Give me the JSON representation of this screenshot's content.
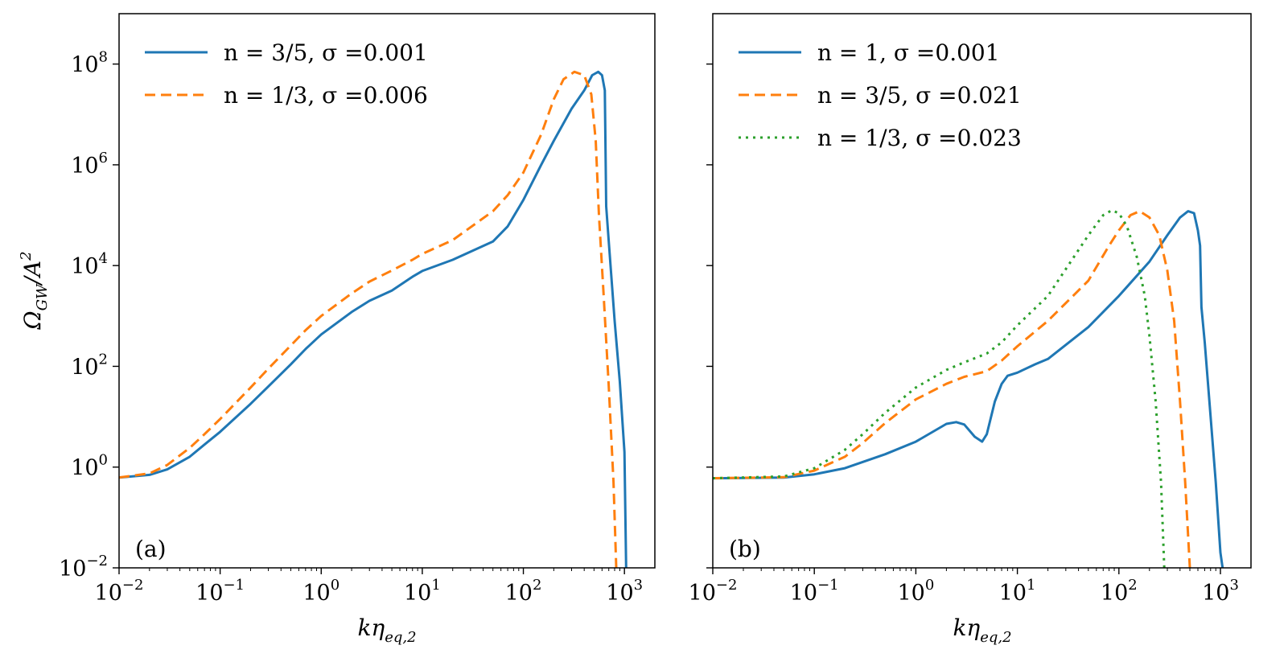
{
  "figure": {
    "ylabel": "Ω",
    "ylabel_sub": "GW",
    "ylabel_tail": "/A",
    "ylabel_sup": "2",
    "xlabel": "kη",
    "xlabel_sub": "eq,2"
  },
  "chart_data": [
    {
      "type": "line",
      "panel_tag": "(a)",
      "xscale": "log",
      "yscale": "log",
      "xlim": [
        0.01,
        2000
      ],
      "ylim": [
        0.01,
        1000000000.0
      ],
      "xtick_exps": [
        -2,
        -1,
        0,
        1,
        2,
        3
      ],
      "ytick_exps": [
        -2,
        0,
        2,
        4,
        6,
        8
      ],
      "ytick_labels_visible": true,
      "legend_position": "upper-left",
      "series": [
        {
          "name": "n = 3/5, σ =0.001",
          "color": "#1f77b4",
          "style": "solid",
          "points": [
            [
              0.01,
              0.62
            ],
            [
              0.02,
              0.7
            ],
            [
              0.03,
              0.9
            ],
            [
              0.05,
              1.6
            ],
            [
              0.07,
              2.8
            ],
            [
              0.1,
              5
            ],
            [
              0.2,
              18
            ],
            [
              0.3,
              40
            ],
            [
              0.5,
              110
            ],
            [
              0.7,
              220
            ],
            [
              1,
              430
            ],
            [
              2,
              1200
            ],
            [
              3,
              2000
            ],
            [
              5,
              3200
            ],
            [
              8,
              6000
            ],
            [
              10,
              7800
            ],
            [
              20,
              13000
            ],
            [
              50,
              30000
            ],
            [
              70,
              60000
            ],
            [
              100,
              200000
            ],
            [
              150,
              1000000.0
            ],
            [
              200,
              3000000.0
            ],
            [
              300,
              13000000.0
            ],
            [
              400,
              30000000.0
            ],
            [
              480,
              60000000.0
            ],
            [
              550,
              70000000.0
            ],
            [
              600,
              60000000.0
            ],
            [
              640,
              30000000.0
            ],
            [
              660,
              150000.0
            ],
            [
              700,
              30000.0
            ],
            [
              800,
              800
            ],
            [
              900,
              50
            ],
            [
              1000,
              2
            ],
            [
              1040,
              0.01
            ]
          ]
        },
        {
          "name": "n = 1/3, σ =0.006",
          "color": "#ff7f0e",
          "style": "dashed",
          "points": [
            [
              0.01,
              0.62
            ],
            [
              0.02,
              0.75
            ],
            [
              0.03,
              1.1
            ],
            [
              0.05,
              2.4
            ],
            [
              0.07,
              4.5
            ],
            [
              0.1,
              9
            ],
            [
              0.2,
              38
            ],
            [
              0.3,
              90
            ],
            [
              0.5,
              260
            ],
            [
              0.7,
              520
            ],
            [
              1,
              1000
            ],
            [
              2,
              2800
            ],
            [
              3,
              4800
            ],
            [
              5,
              8000
            ],
            [
              8,
              13000
            ],
            [
              10,
              17000
            ],
            [
              20,
              32000
            ],
            [
              50,
              120000
            ],
            [
              70,
              250000
            ],
            [
              100,
              700000
            ],
            [
              150,
              4000000.0
            ],
            [
              200,
              20000000.0
            ],
            [
              250,
              50000000.0
            ],
            [
              320,
              70000000.0
            ],
            [
              400,
              60000000.0
            ],
            [
              470,
              25000000.0
            ],
            [
              520,
              3000000.0
            ],
            [
              560,
              100000.0
            ],
            [
              620,
              3000
            ],
            [
              700,
              40
            ],
            [
              780,
              0.5
            ],
            [
              830,
              0.01
            ]
          ]
        }
      ]
    },
    {
      "type": "line",
      "panel_tag": "(b)",
      "xscale": "log",
      "yscale": "log",
      "xlim": [
        0.01,
        2000
      ],
      "ylim": [
        0.01,
        1000000000.0
      ],
      "xtick_exps": [
        -2,
        -1,
        0,
        1,
        2,
        3
      ],
      "ytick_exps": [
        -2,
        0,
        2,
        4,
        6,
        8
      ],
      "ytick_labels_visible": false,
      "legend_position": "upper-left",
      "series": [
        {
          "name": "n = 1, σ =0.001",
          "color": "#1f77b4",
          "style": "solid",
          "points": [
            [
              0.01,
              0.6
            ],
            [
              0.05,
              0.62
            ],
            [
              0.1,
              0.72
            ],
            [
              0.2,
              0.95
            ],
            [
              0.5,
              1.8
            ],
            [
              1,
              3.2
            ],
            [
              2,
              7.2
            ],
            [
              2.5,
              7.8
            ],
            [
              3,
              7
            ],
            [
              3.8,
              4
            ],
            [
              4.5,
              3.2
            ],
            [
              5,
              4.5
            ],
            [
              6,
              20
            ],
            [
              7,
              45
            ],
            [
              8,
              65
            ],
            [
              10,
              75
            ],
            [
              15,
              110
            ],
            [
              20,
              140
            ],
            [
              50,
              600
            ],
            [
              100,
              2500
            ],
            [
              200,
              12000
            ],
            [
              300,
              40000
            ],
            [
              400,
              90000
            ],
            [
              480,
              120000
            ],
            [
              550,
              110000
            ],
            [
              600,
              50000
            ],
            [
              630,
              25000
            ],
            [
              650,
              1500
            ],
            [
              700,
              300
            ],
            [
              800,
              10
            ],
            [
              900,
              0.5
            ],
            [
              1000,
              0.02
            ],
            [
              1050,
              0.01
            ]
          ]
        },
        {
          "name": "n = 3/5, σ =0.021",
          "color": "#ff7f0e",
          "style": "dashed",
          "points": [
            [
              0.01,
              0.6
            ],
            [
              0.05,
              0.63
            ],
            [
              0.1,
              0.85
            ],
            [
              0.2,
              1.6
            ],
            [
              0.3,
              3
            ],
            [
              0.5,
              7.5
            ],
            [
              1,
              22
            ],
            [
              2,
              45
            ],
            [
              3,
              62
            ],
            [
              5,
              80
            ],
            [
              7,
              130
            ],
            [
              10,
              250
            ],
            [
              20,
              800
            ],
            [
              50,
              5000
            ],
            [
              80,
              25000
            ],
            [
              100,
              50000
            ],
            [
              130,
              100000
            ],
            [
              160,
              120000
            ],
            [
              200,
              90000
            ],
            [
              250,
              40000
            ],
            [
              300,
              8000
            ],
            [
              350,
              800
            ],
            [
              400,
              20
            ],
            [
              450,
              0.5
            ],
            [
              500,
              0.01
            ]
          ]
        },
        {
          "name": "n = 1/3, σ =0.023",
          "color": "#2ca02c",
          "style": "dotted",
          "points": [
            [
              0.01,
              0.6
            ],
            [
              0.05,
              0.65
            ],
            [
              0.1,
              0.95
            ],
            [
              0.2,
              2.2
            ],
            [
              0.3,
              4.5
            ],
            [
              0.5,
              12
            ],
            [
              1,
              38
            ],
            [
              2,
              85
            ],
            [
              3,
              120
            ],
            [
              5,
              180
            ],
            [
              7,
              300
            ],
            [
              10,
              650
            ],
            [
              20,
              2500
            ],
            [
              50,
              40000
            ],
            [
              70,
              100000
            ],
            [
              85,
              125000
            ],
            [
              100,
              110000
            ],
            [
              120,
              60000
            ],
            [
              150,
              15000
            ],
            [
              180,
              2500
            ],
            [
              200,
              400
            ],
            [
              230,
              20
            ],
            [
              260,
              0.5
            ],
            [
              280,
              0.01
            ]
          ]
        }
      ]
    }
  ]
}
